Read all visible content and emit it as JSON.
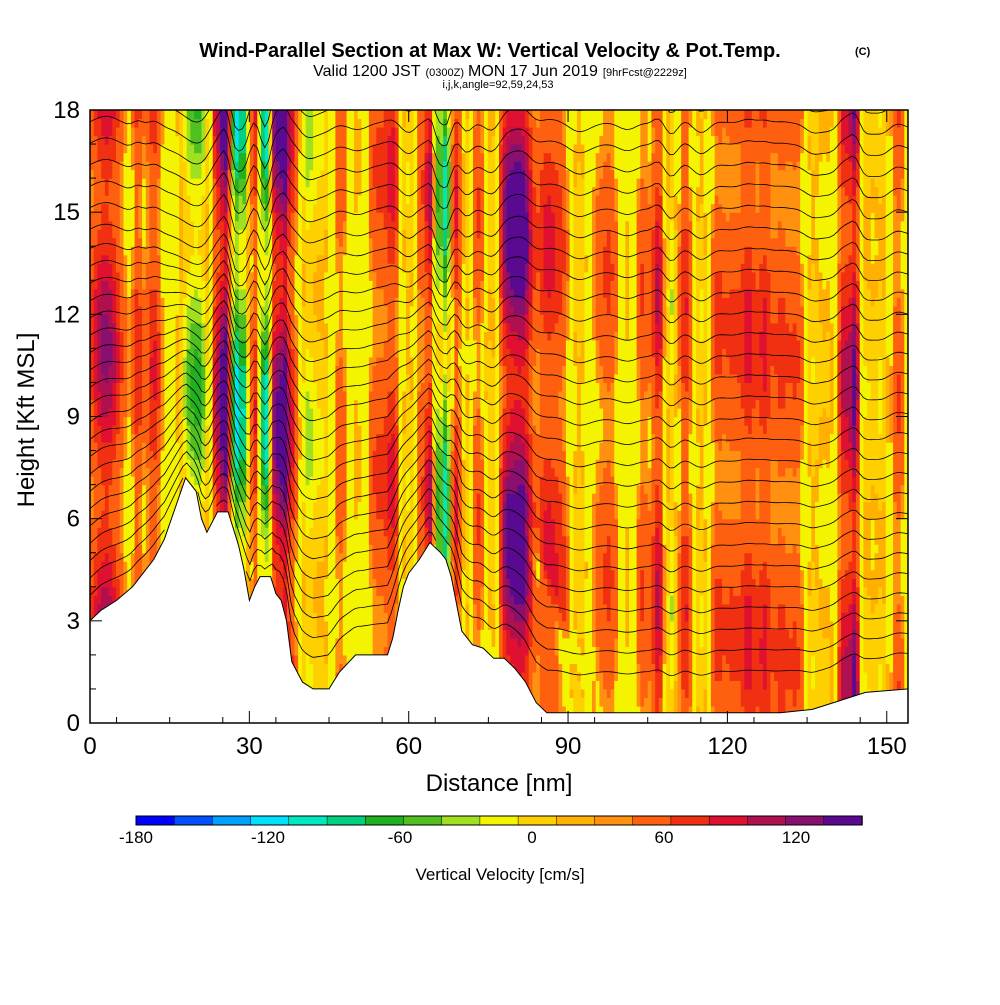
{
  "chart_data": {
    "type": "heatmap",
    "title": "Wind-Parallel Section at Max W: Vertical Velocity & Pot.Temp.",
    "title_mark": "(C)",
    "subtitle": {
      "prefix": "Valid 1200 JST",
      "utc": "(0300Z)",
      "date": "MON 17 Jun 2019",
      "forecast": "[9hrFcst@2229z]"
    },
    "subtitle2": "i,j,k,angle=92,59,24,53",
    "xlabel": "Distance [nm]",
    "ylabel": "Height [Kft MSL]",
    "xlim": [
      0,
      154
    ],
    "ylim": [
      0,
      18
    ],
    "xticks": [
      0,
      30,
      60,
      90,
      120,
      150
    ],
    "xtick_labels": [
      "0",
      "30",
      "60",
      "90",
      "120",
      "150"
    ],
    "yticks": [
      0,
      3,
      6,
      9,
      12,
      15,
      18
    ],
    "ytick_labels": [
      "0",
      "3",
      "6",
      "9",
      "12",
      "15",
      "18"
    ],
    "colorbar": {
      "label": "Vertical Velocity [cm/s]",
      "min": -180,
      "max": 150,
      "step": 15,
      "tick_values": [
        -180,
        -120,
        -60,
        0,
        60,
        120
      ],
      "tick_labels": [
        "-180",
        "-120",
        "-60",
        "0",
        "60",
        "120"
      ],
      "colors": [
        "#0000ff",
        "#0050ff",
        "#00a0ff",
        "#00e0ff",
        "#00e8c0",
        "#00d080",
        "#20b020",
        "#50c020",
        "#a0e020",
        "#f4f400",
        "#ffd000",
        "#ffb000",
        "#ff9010",
        "#ff6010",
        "#f03010",
        "#e01030",
        "#b01050",
        "#8a1070",
        "#5a0a90"
      ]
    },
    "terrain": [
      [
        0,
        3.0
      ],
      [
        2,
        3.3
      ],
      [
        5,
        3.6
      ],
      [
        8,
        4.0
      ],
      [
        10,
        4.4
      ],
      [
        12,
        4.8
      ],
      [
        14,
        5.4
      ],
      [
        16,
        6.3
      ],
      [
        18,
        7.2
      ],
      [
        20,
        6.8
      ],
      [
        21,
        6.0
      ],
      [
        22,
        5.6
      ],
      [
        24,
        6.2
      ],
      [
        26,
        6.2
      ],
      [
        28,
        5.2
      ],
      [
        29,
        4.5
      ],
      [
        30,
        3.6
      ],
      [
        31,
        4.0
      ],
      [
        32,
        4.3
      ],
      [
        34,
        4.3
      ],
      [
        35,
        3.8
      ],
      [
        36,
        3.6
      ],
      [
        37,
        3.0
      ],
      [
        38,
        1.8
      ],
      [
        40,
        1.2
      ],
      [
        42,
        1.0
      ],
      [
        45,
        1.0
      ],
      [
        47,
        1.5
      ],
      [
        50,
        2.0
      ],
      [
        56,
        2.0
      ],
      [
        57,
        2.5
      ],
      [
        58,
        3.3
      ],
      [
        59,
        4.0
      ],
      [
        60,
        4.4
      ],
      [
        62,
        4.8
      ],
      [
        64,
        5.3
      ],
      [
        66,
        5.0
      ],
      [
        67,
        4.8
      ],
      [
        68,
        4.3
      ],
      [
        69,
        3.5
      ],
      [
        70,
        2.7
      ],
      [
        72,
        2.3
      ],
      [
        74,
        2.2
      ],
      [
        76,
        1.9
      ],
      [
        78,
        1.9
      ],
      [
        80,
        1.6
      ],
      [
        82,
        1.2
      ],
      [
        84,
        0.6
      ],
      [
        86,
        0.3
      ],
      [
        90,
        0.3
      ],
      [
        100,
        0.3
      ],
      [
        110,
        0.3
      ],
      [
        124,
        0.3
      ],
      [
        130,
        0.3
      ],
      [
        136,
        0.4
      ],
      [
        140,
        0.6
      ],
      [
        146,
        0.9
      ],
      [
        154,
        1.0
      ]
    ],
    "bands": [
      [
        3,
        5,
        3
      ],
      [
        9,
        2.5,
        1
      ],
      [
        12,
        3,
        1.5
      ],
      [
        19,
        -4,
        2
      ],
      [
        21,
        -3,
        1.5
      ],
      [
        24,
        4,
        1.2
      ],
      [
        25.5,
        7,
        0.9
      ],
      [
        27.5,
        -8,
        0.9
      ],
      [
        29,
        -6,
        0.8
      ],
      [
        31,
        3,
        0.8
      ],
      [
        33,
        -8,
        0.9
      ],
      [
        35,
        6,
        0.9
      ],
      [
        36.5,
        7,
        0.8
      ],
      [
        38,
        3,
        1.2
      ],
      [
        41,
        -3,
        1.5
      ],
      [
        44,
        -2,
        2
      ],
      [
        47,
        2,
        2
      ],
      [
        50,
        -1,
        2
      ],
      [
        54,
        2,
        2
      ],
      [
        57,
        3,
        1.5
      ],
      [
        60,
        -2,
        1.5
      ],
      [
        62,
        2,
        1
      ],
      [
        64,
        4,
        1
      ],
      [
        65.5,
        -5,
        0.7
      ],
      [
        67,
        -7,
        0.8
      ],
      [
        69,
        3,
        1
      ],
      [
        71,
        -2,
        1
      ],
      [
        73,
        2,
        1.5
      ],
      [
        76,
        -2,
        1.5
      ],
      [
        78,
        3,
        1.5
      ],
      [
        80,
        6,
        2
      ],
      [
        82,
        4,
        1.5
      ],
      [
        86,
        3,
        2
      ],
      [
        89,
        2,
        2
      ],
      [
        92,
        -2,
        2
      ],
      [
        95,
        1,
        2
      ],
      [
        98,
        2,
        2
      ],
      [
        101,
        -1,
        2
      ],
      [
        104,
        2,
        1.5
      ],
      [
        107,
        4,
        1.2
      ],
      [
        109.5,
        -3,
        1.2
      ],
      [
        112,
        3,
        1.5
      ],
      [
        115,
        -2,
        1.5
      ],
      [
        118,
        2,
        1.5
      ],
      [
        121,
        2,
        2
      ],
      [
        124,
        3,
        1.5
      ],
      [
        127,
        3,
        1.5
      ],
      [
        130,
        2,
        1.5
      ],
      [
        133,
        2,
        2
      ],
      [
        136,
        -2,
        1.5
      ],
      [
        139,
        -1,
        1.5
      ],
      [
        142,
        4,
        1.2
      ],
      [
        144,
        6,
        1
      ],
      [
        146,
        -2,
        1.5
      ],
      [
        149,
        -2,
        1.5
      ],
      [
        152,
        2,
        1.5
      ]
    ],
    "contour_levels": 28
  }
}
